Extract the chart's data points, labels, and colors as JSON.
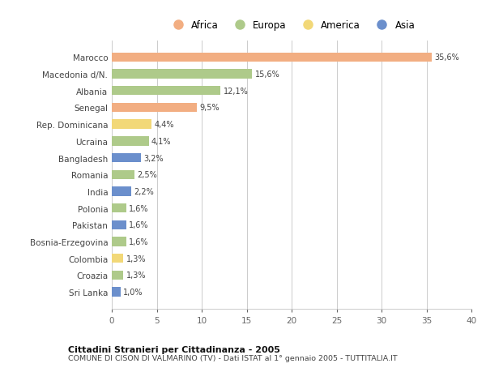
{
  "countries": [
    "Marocco",
    "Macedonia d/N.",
    "Albania",
    "Senegal",
    "Rep. Dominicana",
    "Ucraina",
    "Bangladesh",
    "Romania",
    "India",
    "Polonia",
    "Pakistan",
    "Bosnia-Erzegovina",
    "Colombia",
    "Croazia",
    "Sri Lanka"
  ],
  "values": [
    35.6,
    15.6,
    12.1,
    9.5,
    4.4,
    4.1,
    3.2,
    2.5,
    2.2,
    1.6,
    1.6,
    1.6,
    1.3,
    1.3,
    1.0
  ],
  "labels": [
    "35,6%",
    "15,6%",
    "12,1%",
    "9,5%",
    "4,4%",
    "4,1%",
    "3,2%",
    "2,5%",
    "2,2%",
    "1,6%",
    "1,6%",
    "1,6%",
    "1,3%",
    "1,3%",
    "1,0%"
  ],
  "continents": [
    "Africa",
    "Europa",
    "Europa",
    "Africa",
    "America",
    "Europa",
    "Asia",
    "Europa",
    "Asia",
    "Europa",
    "Asia",
    "Europa",
    "America",
    "Europa",
    "Asia"
  ],
  "colors": {
    "Africa": "#F2AE82",
    "Europa": "#AECA8A",
    "America": "#F2D878",
    "Asia": "#6B8FCC"
  },
  "legend_order": [
    "Africa",
    "Europa",
    "America",
    "Asia"
  ],
  "xlim": [
    0,
    40
  ],
  "xticks": [
    0,
    5,
    10,
    15,
    20,
    25,
    30,
    35,
    40
  ],
  "title_bold": "Cittadini Stranieri per Cittadinanza - 2005",
  "subtitle": "COMUNE DI CISON DI VALMARINO (TV) - Dati ISTAT al 1° gennaio 2005 - TUTTITALIA.IT",
  "bg_color": "#ffffff",
  "grid_color": "#cccccc"
}
